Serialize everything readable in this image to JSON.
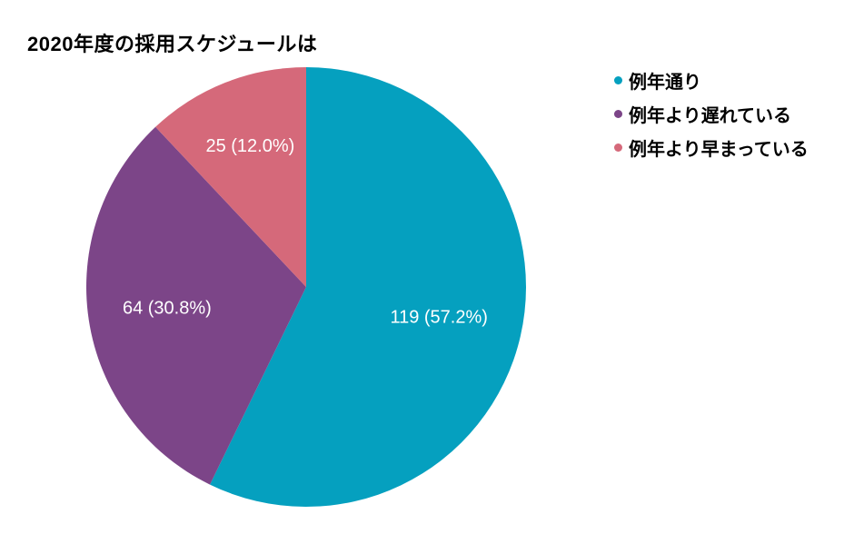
{
  "chart_data": {
    "type": "pie",
    "title": "2020年度の採用スケジュールは",
    "legend_position": "right",
    "grid": false,
    "background_color": "#ffffff",
    "title_color": "#000000",
    "label_color": "#ffffff",
    "start_angle_deg": 0,
    "direction": "clockwise",
    "slices": [
      {
        "label": "例年通り",
        "value": 119,
        "pct": 57.2,
        "display": "119 (57.2%)",
        "color": "#05a0bf"
      },
      {
        "label": "例年より遅れている",
        "value": 64,
        "pct": 30.8,
        "display": "64 (30.8%)",
        "color": "#7c4588"
      },
      {
        "label": "例年より早まっている",
        "value": 25,
        "pct": 12.0,
        "display": "25 (12.0%)",
        "color": "#d5697a"
      }
    ]
  }
}
